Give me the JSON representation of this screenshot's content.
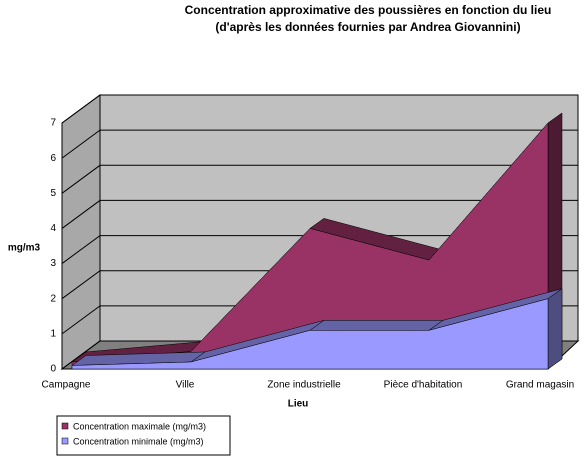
{
  "chart_data": {
    "type": "area",
    "title": "Concentration approximative des poussières en fonction du lieu",
    "subtitle": "(d'après les données fournies par Andrea Giovannini)",
    "y_label": "mg/m3",
    "x_label": "Lieu",
    "categories": [
      "Campagne",
      "Ville",
      "Zone industrielle",
      "Pièce d'habitation",
      "Grand magasin"
    ],
    "series": [
      {
        "name": "Concentration maximale (mg/m3)",
        "color": "#993366",
        "values": [
          0.2,
          0.5,
          4,
          3.1,
          7
        ]
      },
      {
        "name": "Concentration minimale (mg/m3)",
        "color": "#9999ff",
        "values": [
          0.1,
          0.2,
          1.1,
          1.1,
          2
        ]
      }
    ],
    "ylim": [
      0,
      7
    ],
    "yticks": [
      0,
      1,
      2,
      3,
      4,
      5,
      6,
      7
    ],
    "grid": true
  }
}
